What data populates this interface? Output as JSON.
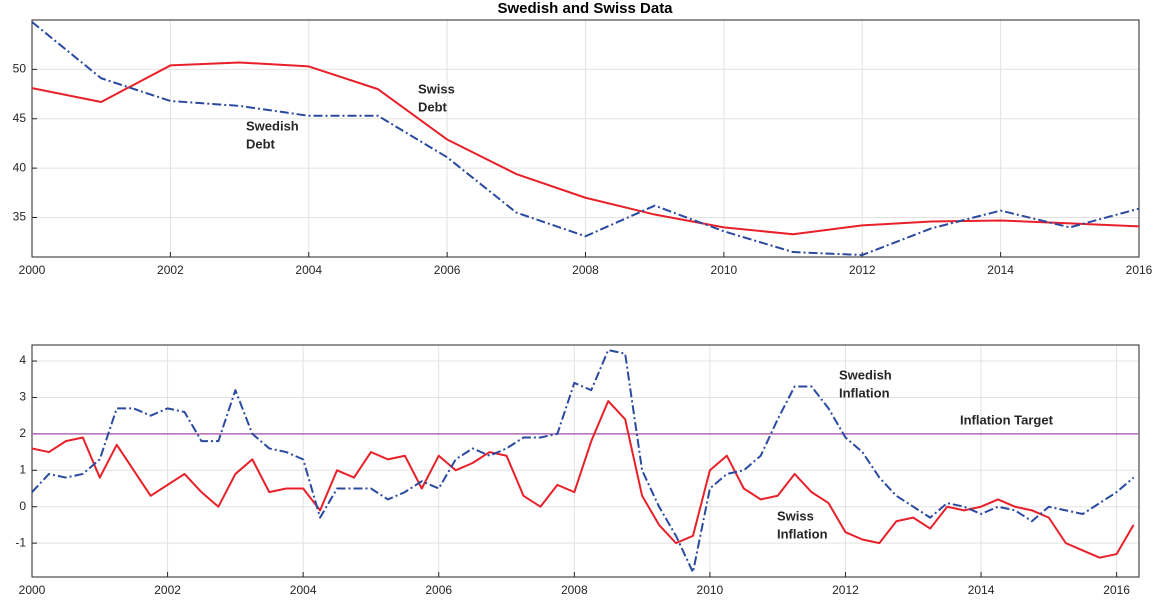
{
  "chart_data": [
    {
      "type": "line",
      "title": "Swedish and Swiss Data",
      "x": [
        2000,
        2001,
        2002,
        2003,
        2004,
        2005,
        2006,
        2007,
        2008,
        2009,
        2010,
        2011,
        2012,
        2013,
        2014,
        2015,
        2016
      ],
      "series": [
        {
          "name": "Swiss Debt",
          "color": "#e8202a",
          "dash": "solid",
          "values": [
            48.1,
            46.7,
            50.4,
            50.7,
            50.3,
            48.0,
            42.9,
            39.4,
            37.0,
            35.3,
            34.0,
            33.3,
            34.2,
            34.6,
            34.7,
            34.4,
            34.1
          ]
        },
        {
          "name": "Swedish Debt",
          "color": "#2a4a9f",
          "dash": "dashdot",
          "values": [
            54.8,
            49.1,
            46.8,
            46.3,
            45.3,
            45.3,
            41.1,
            35.5,
            33.1,
            36.2,
            33.6,
            31.5,
            31.2,
            33.9,
            35.7,
            34.0,
            35.9
          ]
        }
      ],
      "annotations": [
        {
          "lines": [
            "Swiss",
            "Debt"
          ]
        },
        {
          "lines": [
            "Swedish",
            "Debt"
          ]
        }
      ],
      "xlim": [
        2000,
        2016
      ],
      "xticks": [
        2000,
        2002,
        2004,
        2006,
        2008,
        2010,
        2012,
        2014,
        2016
      ],
      "ylim": [
        31,
        55
      ],
      "yticks": [
        35,
        40,
        45,
        50
      ],
      "grid": true
    },
    {
      "type": "line",
      "x": [
        2000,
        2000.25,
        2000.5,
        2000.75,
        2001,
        2001.25,
        2001.5,
        2001.75,
        2002,
        2002.25,
        2002.5,
        2002.75,
        2003,
        2003.25,
        2003.5,
        2003.75,
        2004,
        2004.25,
        2004.5,
        2004.75,
        2005,
        2005.25,
        2005.5,
        2005.75,
        2006,
        2006.25,
        2006.5,
        2006.75,
        2007,
        2007.25,
        2007.5,
        2007.75,
        2008,
        2008.25,
        2008.5,
        2008.75,
        2009,
        2009.25,
        2009.5,
        2009.75,
        2010,
        2010.25,
        2010.5,
        2010.75,
        2011,
        2011.25,
        2011.5,
        2011.75,
        2012,
        2012.25,
        2012.5,
        2012.75,
        2013,
        2013.25,
        2013.5,
        2013.75,
        2014,
        2014.25,
        2014.5,
        2014.75,
        2015,
        2015.25,
        2015.5,
        2015.75,
        2016,
        2016.25
      ],
      "series": [
        {
          "name": "Swiss Inflation",
          "color": "#e8202a",
          "dash": "solid",
          "values": [
            1.6,
            1.5,
            1.8,
            1.9,
            0.8,
            1.7,
            1.0,
            0.3,
            0.6,
            0.9,
            0.4,
            0.0,
            0.9,
            1.3,
            0.4,
            0.5,
            0.5,
            -0.1,
            1.0,
            0.8,
            1.5,
            1.3,
            1.4,
            0.5,
            1.4,
            1.0,
            1.2,
            1.5,
            1.4,
            0.3,
            0.0,
            0.6,
            0.4,
            1.8,
            2.9,
            2.4,
            0.3,
            -0.5,
            -1.0,
            -0.8,
            1.0,
            1.4,
            0.5,
            0.2,
            0.3,
            0.9,
            0.4,
            0.1,
            -0.7,
            -0.9,
            -1.0,
            -0.4,
            -0.3,
            -0.6,
            0.0,
            -0.1,
            0.0,
            0.2,
            0.0,
            -0.1,
            -0.3,
            -1.0,
            -1.2,
            -1.4,
            -1.3,
            -0.5
          ]
        },
        {
          "name": "Swedish Inflation",
          "color": "#2a4a9f",
          "dash": "dashdot",
          "values": [
            0.4,
            0.9,
            0.8,
            0.9,
            1.3,
            2.7,
            2.7,
            2.5,
            2.7,
            2.6,
            1.8,
            1.8,
            3.2,
            2.0,
            1.6,
            1.5,
            1.3,
            -0.3,
            0.5,
            0.5,
            0.5,
            0.2,
            0.4,
            0.7,
            0.5,
            1.3,
            1.6,
            1.4,
            1.6,
            1.9,
            1.9,
            2.0,
            3.4,
            3.2,
            4.3,
            4.2,
            1.0,
            0.0,
            -0.8,
            -1.8,
            0.5,
            0.9,
            1.0,
            1.4,
            2.4,
            3.3,
            3.3,
            2.7,
            1.9,
            1.5,
            0.8,
            0.3,
            0.0,
            -0.3,
            0.1,
            0.0,
            -0.2,
            0.0,
            -0.1,
            -0.4,
            0.0,
            -0.1,
            -0.2,
            0.1,
            0.4,
            0.8
          ]
        }
      ],
      "reference_line": {
        "value": 2,
        "color": "#b06ab3",
        "label": "Inflation Target"
      },
      "annotations": [
        {
          "lines": [
            "Swedish",
            "Inflation"
          ]
        },
        {
          "lines": [
            "Swiss",
            "Inflation"
          ]
        }
      ],
      "xlim": [
        2000,
        2016.33
      ],
      "xticks": [
        2000,
        2002,
        2004,
        2006,
        2008,
        2010,
        2012,
        2014,
        2016
      ],
      "ylim": [
        -1.93,
        4.44
      ],
      "yticks": [
        -1,
        0,
        1,
        2,
        3,
        4
      ],
      "grid": true
    }
  ]
}
